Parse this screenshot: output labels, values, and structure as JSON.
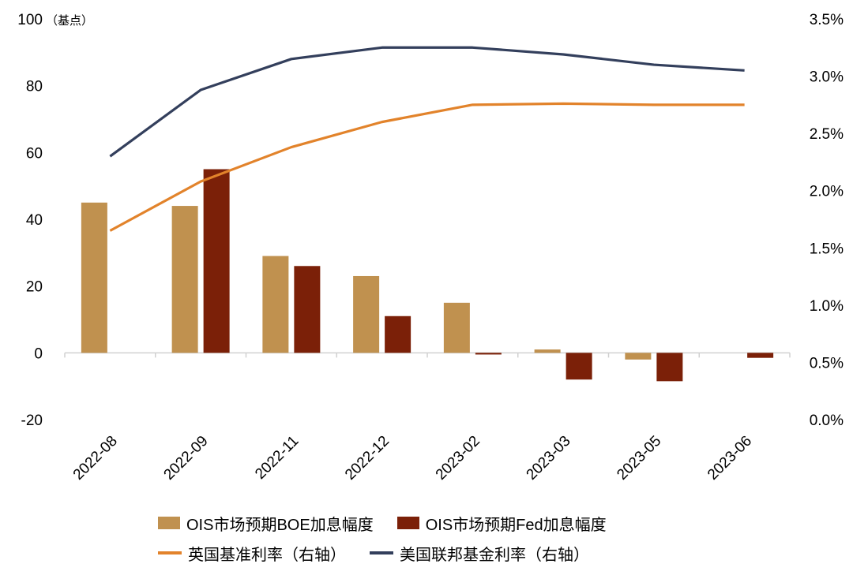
{
  "chart_data": {
    "type": "bar",
    "categories": [
      "2022-08",
      "2022-09",
      "2022-11",
      "2022-12",
      "2023-02",
      "2023-03",
      "2023-05",
      "2023-06"
    ],
    "y_left": {
      "unit": "（基点）",
      "ticks": [
        "100",
        "80",
        "60",
        "40",
        "20",
        "0",
        "-20"
      ],
      "lim": [
        -20,
        100
      ]
    },
    "y_right": {
      "ticks": [
        "3.5%",
        "3.0%",
        "2.5%",
        "2.0%",
        "1.5%",
        "1.0%",
        "0.5%",
        "0.0%"
      ],
      "lim": [
        0.0,
        3.5
      ]
    },
    "series": [
      {
        "name": "OIS市场预期BOE加息幅度",
        "type": "bar",
        "axis": "left",
        "color": "#C0914F",
        "values": [
          45,
          44,
          29,
          23,
          15,
          1,
          -2,
          0
        ]
      },
      {
        "name": "OIS市场预期Fed加息幅度",
        "type": "bar",
        "axis": "left",
        "color": "#7B2008",
        "values": [
          0,
          55,
          26,
          11,
          -0.5,
          -8,
          -8.5,
          -1.5
        ]
      },
      {
        "name": "英国基准利率（右轴）",
        "type": "line",
        "axis": "right",
        "color": "#E2832B",
        "values": [
          1.65,
          2.08,
          2.38,
          2.6,
          2.75,
          2.76,
          2.75,
          2.75
        ]
      },
      {
        "name": "美国联邦基金利率（右轴）",
        "type": "line",
        "axis": "right",
        "color": "#333F5C",
        "values": [
          2.3,
          2.88,
          3.15,
          3.25,
          3.25,
          3.19,
          3.1,
          3.05
        ]
      }
    ],
    "grid": false,
    "legend_position": "bottom"
  }
}
